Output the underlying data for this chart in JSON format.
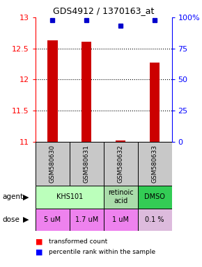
{
  "title": "GDS4912 / 1370163_at",
  "samples": [
    "GSM580630",
    "GSM580631",
    "GSM580632",
    "GSM580633"
  ],
  "red_values": [
    12.63,
    12.61,
    11.02,
    12.27
  ],
  "blue_values": [
    98,
    98,
    93,
    98
  ],
  "ylim_left": [
    11,
    13
  ],
  "ylim_right": [
    0,
    100
  ],
  "yticks_left": [
    11,
    11.5,
    12,
    12.5,
    13
  ],
  "yticks_right": [
    0,
    25,
    50,
    75,
    100
  ],
  "ytick_labels_right": [
    "0",
    "25",
    "50",
    "75",
    "100%"
  ],
  "agent_configs": [
    {
      "label": "KHS101",
      "color": "#BBFFBB",
      "start": 0,
      "end": 2
    },
    {
      "label": "retinoic\nacid",
      "color": "#AADDAA",
      "start": 2,
      "end": 3
    },
    {
      "label": "DMSO",
      "color": "#33CC55",
      "start": 3,
      "end": 4
    }
  ],
  "dose_labels": [
    "5 uM",
    "1.7 uM",
    "1 uM",
    "0.1 %"
  ],
  "dose_colors": [
    "#EE82EE",
    "#EE82EE",
    "#EE82EE",
    "#DDBBDD"
  ],
  "sample_bg": "#C8C8C8",
  "legend_red_label": "transformed count",
  "legend_blue_label": "percentile rank within the sample",
  "bar_color": "#CC0000",
  "dot_color": "#0000CC"
}
